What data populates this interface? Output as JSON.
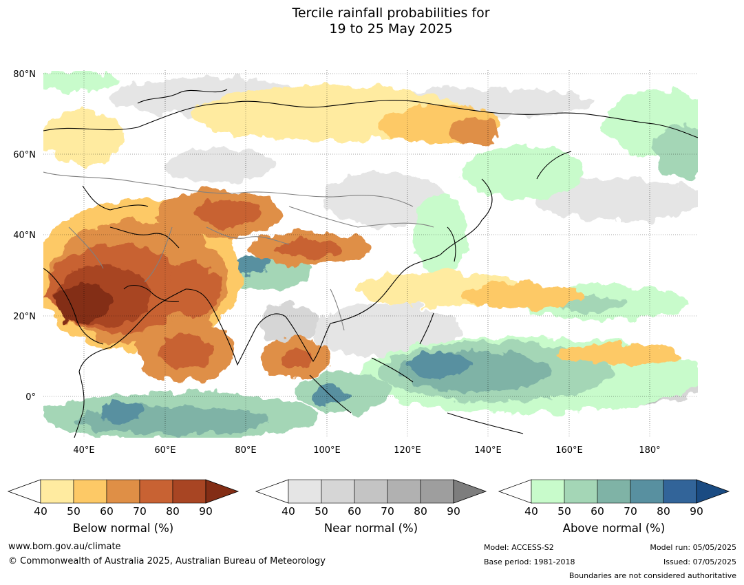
{
  "title": {
    "line1": "Tercile rainfall probabilities for",
    "line2": "19 to 25 May 2025"
  },
  "map": {
    "lat_labels": [
      "80°N",
      "60°N",
      "40°N",
      "20°N",
      "0°"
    ],
    "lon_labels": [
      "40°E",
      "60°E",
      "80°E",
      "100°E",
      "120°E",
      "140°E",
      "160°E",
      "180°"
    ],
    "lat_range": [
      -10,
      81
    ],
    "lon_range": [
      30,
      192
    ],
    "gridlines": true
  },
  "legends": {
    "below": {
      "title": "Below normal (%)",
      "ticks": [
        "40",
        "50",
        "60",
        "70",
        "80",
        "90"
      ],
      "colors": [
        "#ffeba0",
        "#fdc966",
        "#df8f46",
        "#c86233",
        "#a84523",
        "#832d15"
      ]
    },
    "near": {
      "title": "Near normal (%)",
      "ticks": [
        "40",
        "50",
        "60",
        "70",
        "80",
        "90"
      ],
      "colors": [
        "#e5e5e5",
        "#d6d6d6",
        "#c4c4c4",
        "#b1b1b1",
        "#9e9e9e",
        "#7d7d7d"
      ]
    },
    "above": {
      "title": "Above normal (%)",
      "ticks": [
        "40",
        "50",
        "60",
        "70",
        "80",
        "90"
      ],
      "colors": [
        "#c8fbcb",
        "#a4d6b6",
        "#7fb3a6",
        "#5890a0",
        "#326499",
        "#1a4b82"
      ]
    }
  },
  "footer": {
    "website": "www.bom.gov.au/climate",
    "copyright": "© Commonwealth of Australia 2025, Australian Bureau of Meteorology",
    "model": "Model: ACCESS-S2",
    "base_period": "Base period: 1981-2018",
    "model_run": "Model run: 05/05/2025",
    "issued": "Issued: 07/05/2025",
    "disclaimer": "Boundaries are not considered authoritative"
  }
}
